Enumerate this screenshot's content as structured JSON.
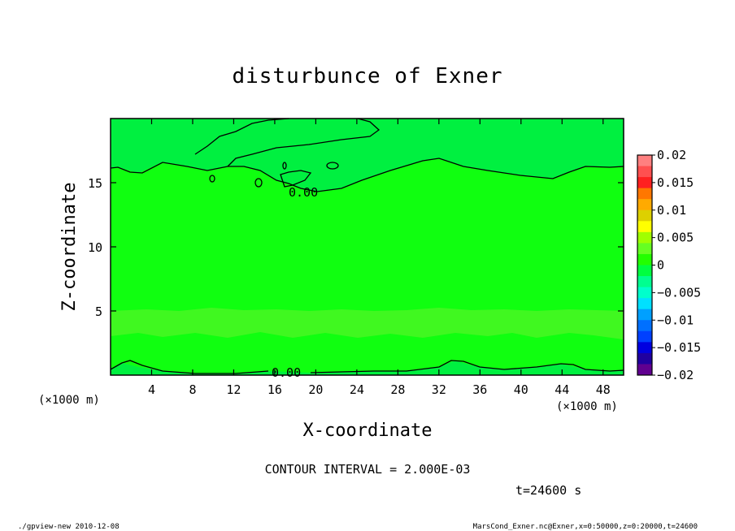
{
  "chart_data": {
    "type": "heatmap",
    "title": "disturbunce of Exner",
    "xlabel": "X-coordinate",
    "ylabel": "Z-coordinate",
    "x_unit": "(×1000 m)",
    "x_unit_right": "(×1000 m)",
    "xlim": [
      0,
      50
    ],
    "ylim": [
      0,
      20
    ],
    "x_ticks": [
      4,
      8,
      12,
      16,
      20,
      24,
      28,
      32,
      36,
      40,
      44,
      48
    ],
    "y_ticks": [
      5,
      10,
      15
    ],
    "contour_labels": [
      "0.00",
      "0.00"
    ],
    "contour_interval_text": "CONTOUR INTERVAL = 2.000E-03",
    "time_text": "t=24600 s",
    "colorbar": {
      "ticks": [
        "0.02",
        "0.015",
        "0.01",
        "0.005",
        "0",
        "−0.005",
        "−0.01",
        "−0.015",
        "−0.02"
      ],
      "colors": [
        "#ff8080",
        "#ff5050",
        "#ff2020",
        "#ff7700",
        "#ffaa00",
        "#ddd000",
        "#ffff00",
        "#a0ff00",
        "#66ff22",
        "#22ff00",
        "#00ff40",
        "#00ff90",
        "#00ffcc",
        "#00e0ff",
        "#00a0ff",
        "#0070ff",
        "#0040ff",
        "#0000e0",
        "#2000a0",
        "#600090"
      ]
    },
    "fill_colors": {
      "main": "#10ff10",
      "upper": "#00f040",
      "lower_band": "#40f820"
    }
  },
  "footer": {
    "left": "./gpview-new   2010-12-08",
    "right": "MarsCond_Exner.nc@Exner,x=0:50000,z=0:20000,t=24600"
  }
}
